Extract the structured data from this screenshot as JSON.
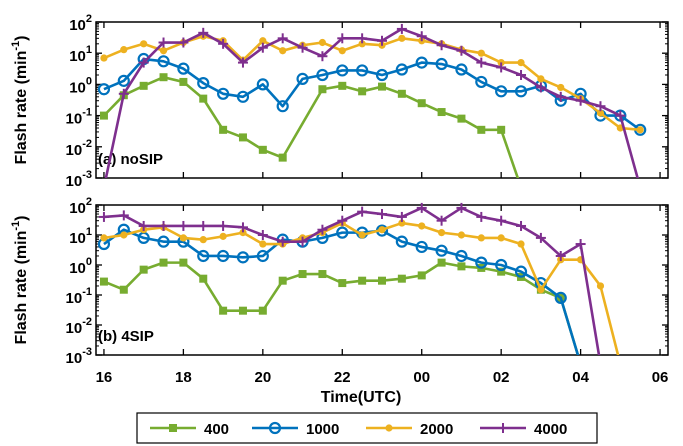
{
  "chart_data": [
    {
      "type": "line",
      "panel_label": "(a) noSIP",
      "ylabel_text": "Flash rate (min",
      "ylabel_sup": "-1",
      "ylabel_close": ")",
      "yscale": "log",
      "ylim": [
        0.001,
        100
      ],
      "yticks": [
        {
          "base": "10",
          "exp": "2"
        },
        {
          "base": "10",
          "exp": "1"
        },
        {
          "base": "10",
          "exp": "0"
        },
        {
          "base": "10",
          "exp": "-1"
        },
        {
          "base": "10",
          "exp": "-2"
        },
        {
          "base": "10",
          "exp": "-3"
        }
      ],
      "x_hours": [
        16,
        16.5,
        17,
        17.5,
        18,
        18.5,
        19,
        19.5,
        20,
        20.5,
        21,
        21.5,
        22,
        22.5,
        23,
        23.5,
        24,
        24.5,
        25,
        25.5,
        26,
        26.5,
        27,
        27.5,
        28,
        28.5,
        29,
        29.5
      ],
      "series": [
        {
          "name": "400",
          "color": "#77ac30",
          "marker": "square",
          "values": [
            0.1,
            0.45,
            0.9,
            1.7,
            1.2,
            0.35,
            0.035,
            0.02,
            0.008,
            0.0045,
            null,
            0.7,
            0.9,
            0.6,
            0.85,
            0.5,
            0.25,
            0.13,
            0.08,
            0.035,
            0.035,
            0.0005,
            null,
            null,
            null,
            null,
            null,
            null
          ]
        },
        {
          "name": "1000",
          "color": "#0072bd",
          "marker": "circle",
          "values": [
            0.7,
            1.3,
            6.5,
            5.5,
            3.2,
            1.1,
            0.5,
            0.4,
            1.0,
            0.2,
            1.5,
            2.0,
            2.8,
            2.8,
            2.0,
            3.0,
            5.0,
            4.5,
            3.0,
            1.2,
            0.6,
            0.6,
            0.9,
            0.3,
            0.5,
            0.1,
            0.1,
            0.035
          ]
        },
        {
          "name": "2000",
          "color": "#edb120",
          "marker": "dot",
          "values": [
            7.0,
            13.0,
            20.0,
            12.0,
            22.0,
            35.0,
            25.0,
            6.0,
            25.0,
            12.0,
            18.0,
            22.0,
            12.0,
            20.0,
            18.0,
            30.0,
            25.0,
            20.0,
            13.0,
            10.0,
            5.0,
            5.0,
            1.5,
            0.8,
            0.35,
            0.12,
            0.04,
            0.035
          ]
        },
        {
          "name": "4000",
          "color": "#7e2f8e",
          "marker": "plus",
          "values": [
            0.0005,
            0.5,
            5.0,
            22.0,
            22.0,
            45.0,
            20.0,
            5.0,
            15.0,
            30.0,
            15.0,
            8.0,
            30.0,
            30.0,
            25.0,
            60.0,
            35.0,
            18.0,
            12.0,
            5.0,
            3.5,
            2.0,
            0.8,
            0.4,
            0.3,
            0.2,
            0.1,
            0.0005
          ]
        }
      ]
    },
    {
      "type": "line",
      "panel_label": "(b) 4SIP",
      "ylabel_text": "Flash rate (min",
      "ylabel_sup": "-1",
      "ylabel_close": ")",
      "yscale": "log",
      "ylim": [
        0.001,
        100
      ],
      "yticks": [
        {
          "base": "10",
          "exp": "2"
        },
        {
          "base": "10",
          "exp": "1"
        },
        {
          "base": "10",
          "exp": "0"
        },
        {
          "base": "10",
          "exp": "-1"
        },
        {
          "base": "10",
          "exp": "-2"
        },
        {
          "base": "10",
          "exp": "-3"
        }
      ],
      "x_hours": [
        16,
        16.5,
        17,
        17.5,
        18,
        18.5,
        19,
        19.5,
        20,
        20.5,
        21,
        21.5,
        22,
        22.5,
        23,
        23.5,
        24,
        24.5,
        25,
        25.5,
        26,
        26.5,
        27,
        27.5,
        28,
        28.5,
        29,
        29.5
      ],
      "series": [
        {
          "name": "400",
          "color": "#77ac30",
          "marker": "square",
          "values": [
            0.28,
            0.15,
            0.7,
            1.2,
            1.2,
            0.35,
            0.03,
            0.03,
            0.03,
            0.3,
            0.5,
            0.5,
            0.25,
            0.3,
            0.3,
            0.35,
            0.45,
            1.2,
            0.9,
            0.8,
            0.6,
            0.4,
            0.15,
            0.08,
            0.0005,
            null,
            null,
            null
          ]
        },
        {
          "name": "1000",
          "color": "#0072bd",
          "marker": "circle",
          "values": [
            5.0,
            15.0,
            8.0,
            6.0,
            6.0,
            2.0,
            2.0,
            1.8,
            2.0,
            7.0,
            6.0,
            8.0,
            12.0,
            12.0,
            14.0,
            6.0,
            4.0,
            3.0,
            2.0,
            1.2,
            1.0,
            0.6,
            0.25,
            0.08,
            0.0005,
            null,
            null,
            null
          ]
        },
        {
          "name": "2000",
          "color": "#edb120",
          "marker": "dot",
          "values": [
            8.0,
            10.0,
            15.0,
            18.0,
            8.0,
            7.0,
            9.0,
            12.0,
            5.0,
            5.0,
            8.0,
            12.0,
            25.0,
            10.0,
            15.0,
            25.0,
            20.0,
            12.0,
            10.0,
            8.0,
            8.0,
            5.0,
            0.15,
            1.5,
            1.5,
            0.2,
            0.0005,
            null
          ]
        },
        {
          "name": "4000",
          "color": "#7e2f8e",
          "marker": "plus",
          "values": [
            40.0,
            45.0,
            20.0,
            20.0,
            20.0,
            20.0,
            20.0,
            18.0,
            10.0,
            6.0,
            6.0,
            15.0,
            30.0,
            60.0,
            50.0,
            40.0,
            80.0,
            30.0,
            80.0,
            40.0,
            30.0,
            20.0,
            8.0,
            2.0,
            5.0,
            0.0005,
            null,
            null
          ]
        }
      ]
    }
  ],
  "xaxis": {
    "label": "Time(UTC)",
    "xlim": [
      15.8,
      30.2
    ],
    "ticks": [
      {
        "hour": 16,
        "label": "16"
      },
      {
        "hour": 18,
        "label": "18"
      },
      {
        "hour": 20,
        "label": "20"
      },
      {
        "hour": 22,
        "label": "22"
      },
      {
        "hour": 24,
        "label": "00"
      },
      {
        "hour": 26,
        "label": "02"
      },
      {
        "hour": 28,
        "label": "04"
      },
      {
        "hour": 30,
        "label": "06"
      }
    ]
  },
  "legend": {
    "position": "bottom",
    "entries": [
      {
        "name": "400",
        "color": "#77ac30",
        "marker": "square"
      },
      {
        "name": "1000",
        "color": "#0072bd",
        "marker": "circle"
      },
      {
        "name": "2000",
        "color": "#edb120",
        "marker": "dot"
      },
      {
        "name": "4000",
        "color": "#7e2f8e",
        "marker": "plus"
      }
    ]
  }
}
